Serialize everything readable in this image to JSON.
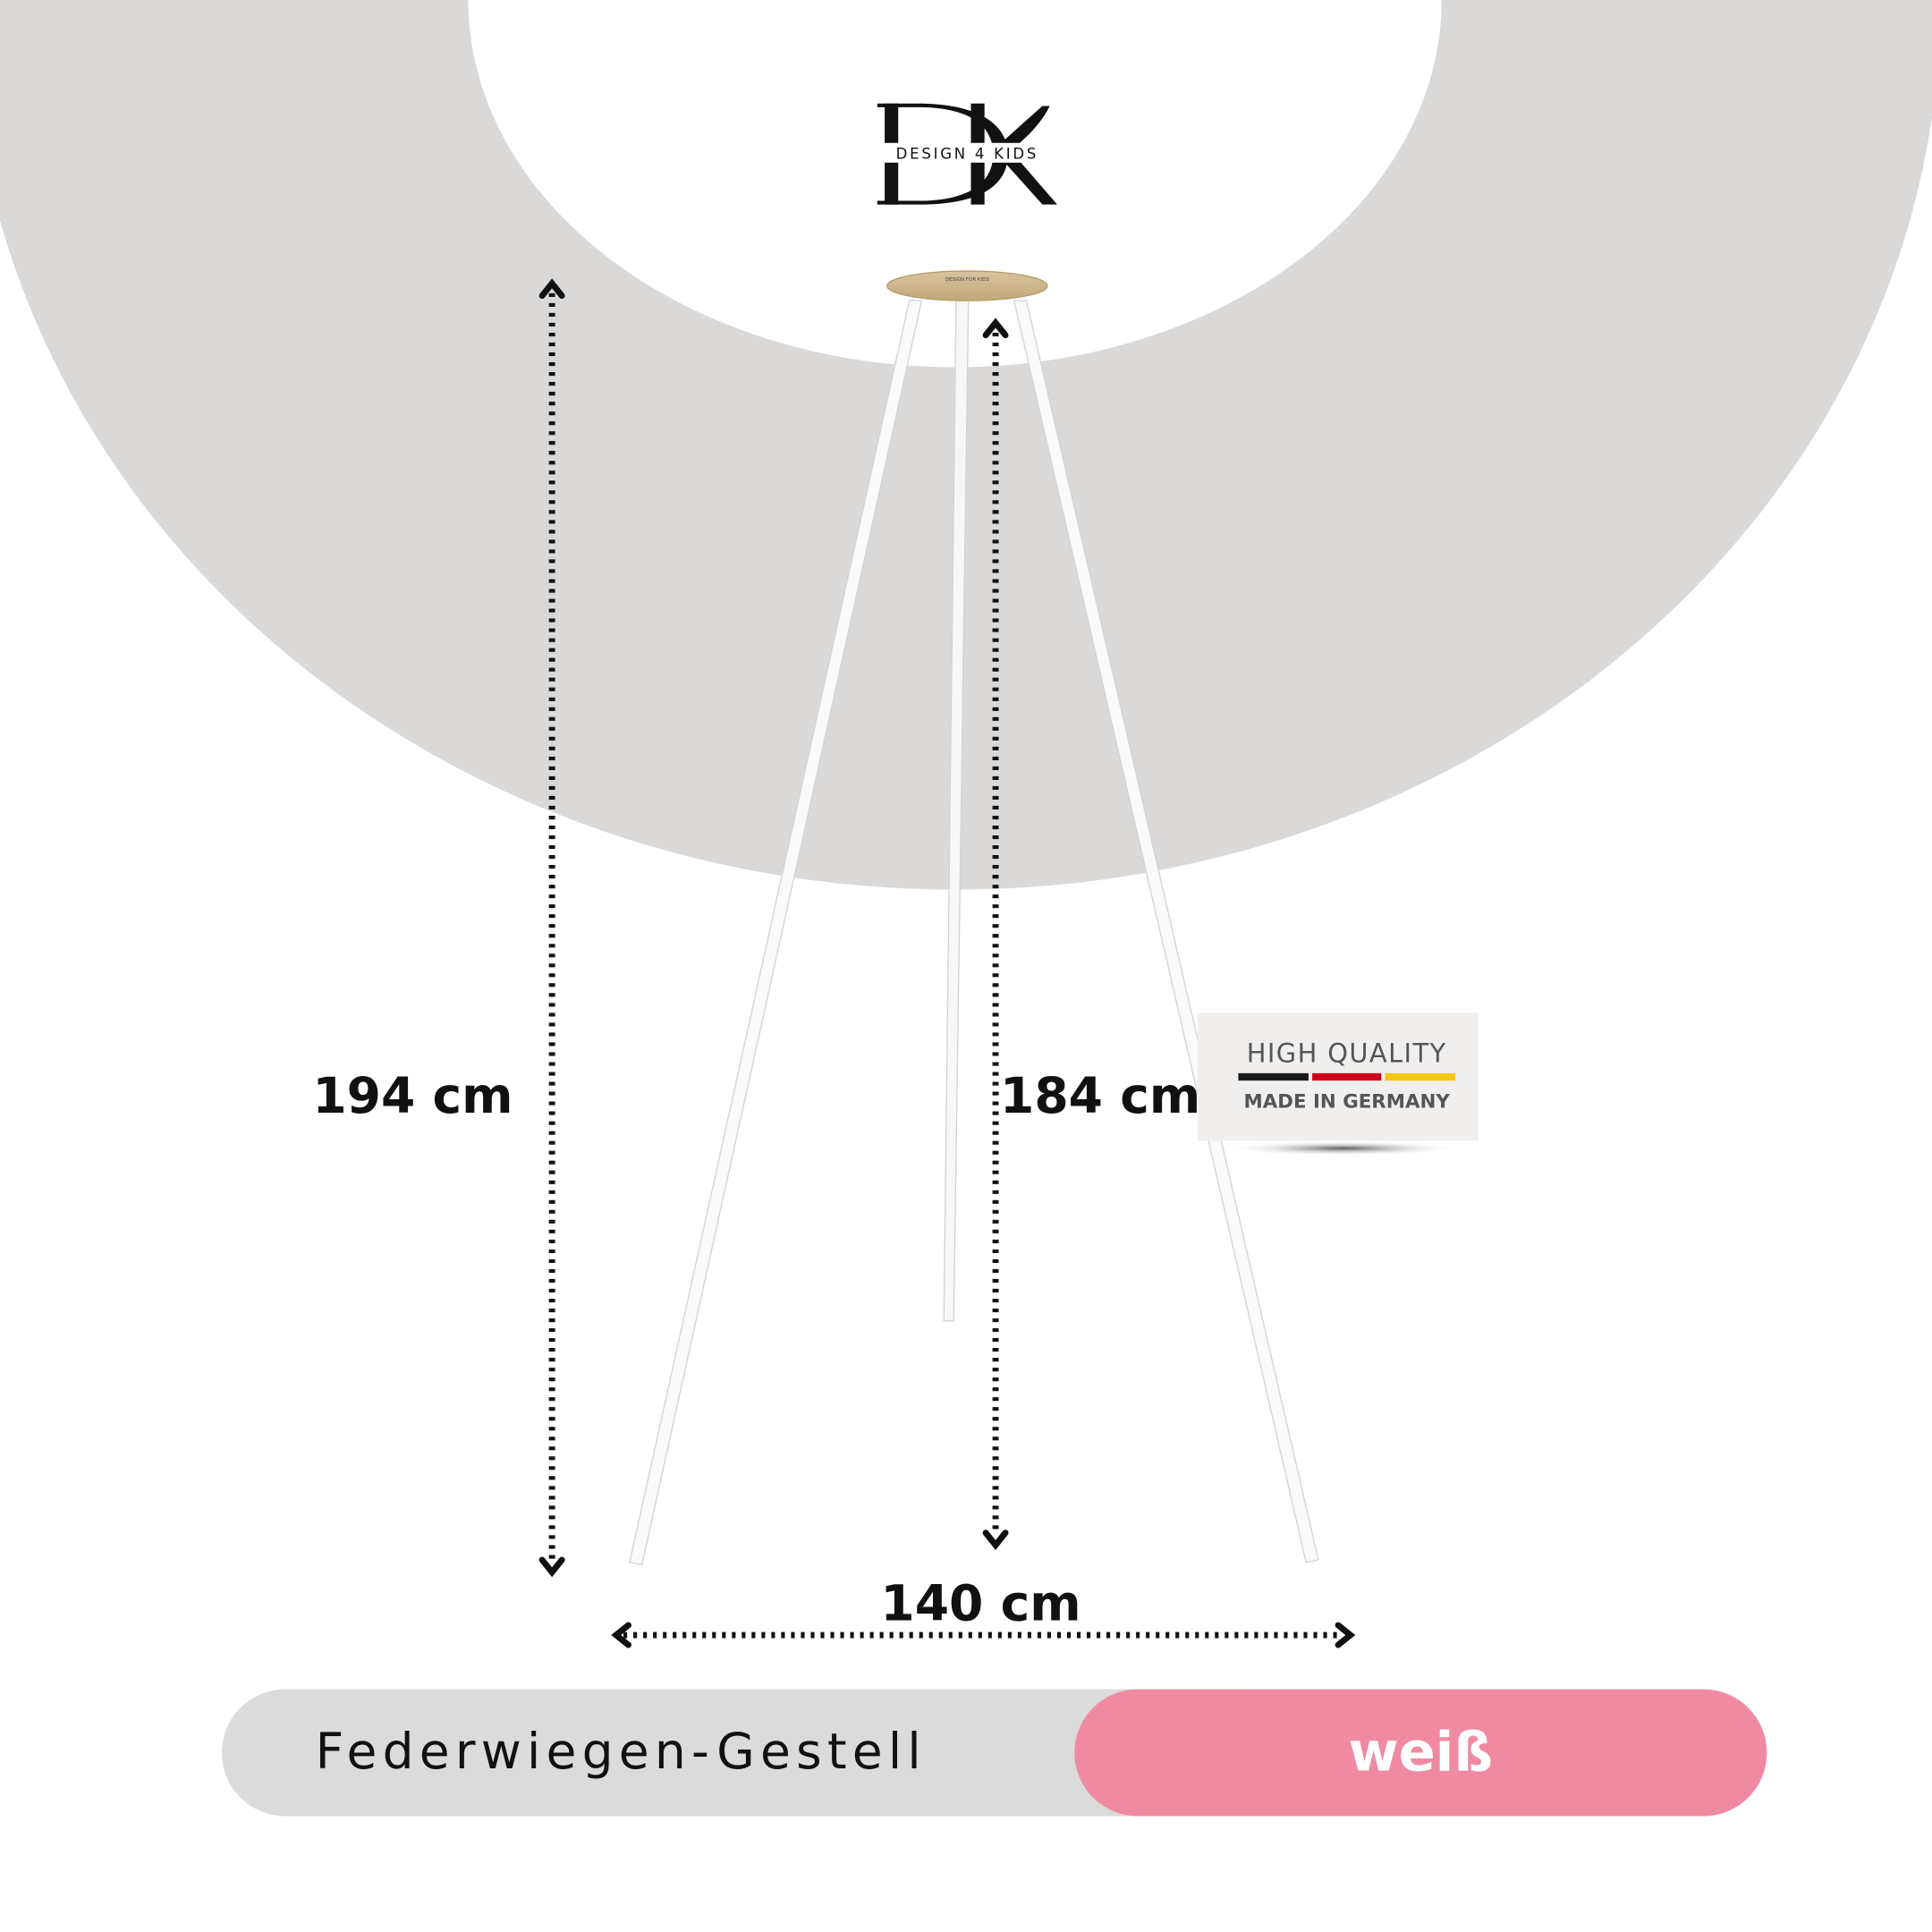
{
  "logo": {
    "monogram": "DK",
    "tagline": "DESIGN 4 KIDS",
    "puck_text": "DESIGN FOR KIDS"
  },
  "dimensions": {
    "total_height": "194 cm",
    "inner_height": "184 cm",
    "width": "140 cm"
  },
  "badge": {
    "title": "HIGH QUALITY",
    "subtitle": "MADE IN GERMANY",
    "flag_colors": [
      "#1a1a1a",
      "#d0021b",
      "#f5c518"
    ]
  },
  "product": {
    "name": "Federwiegen-Gestell",
    "color": "weiß"
  },
  "colors": {
    "ring": "#dad9d8",
    "pill_gray": "#dcdbdb",
    "pill_pink": "#f08aa2"
  }
}
